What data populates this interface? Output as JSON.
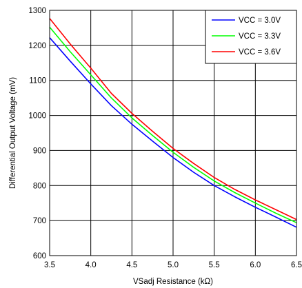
{
  "chart_data": {
    "type": "line",
    "title": "",
    "xlabel": "VSadj Resistance (kΩ)",
    "ylabel": "Differential Output Voltage (mV)",
    "xlim": [
      3.5,
      6.5
    ],
    "ylim": [
      600,
      1300
    ],
    "xticks": [
      "3.5",
      "4.0",
      "4.5",
      "5.0",
      "5.5",
      "6.0",
      "6.5"
    ],
    "yticks": [
      "600",
      "700",
      "800",
      "900",
      "1000",
      "1100",
      "1200",
      "1300"
    ],
    "grid": true,
    "legend_position": "top-right",
    "x": [
      3.5,
      3.75,
      4.0,
      4.25,
      4.5,
      4.75,
      5.0,
      5.25,
      5.5,
      5.75,
      6.0,
      6.25,
      6.5
    ],
    "series": [
      {
        "name": "VCC = 3.0V",
        "color": "#0000ff",
        "values": [
          1222,
          1155,
          1090,
          1028,
          975,
          927,
          880,
          838,
          800,
          768,
          738,
          710,
          681
        ]
      },
      {
        "name": "VCC = 3.3V",
        "color": "#00ff00",
        "values": [
          1252,
          1182,
          1116,
          1050,
          993,
          943,
          895,
          852,
          813,
          780,
          750,
          721,
          694
        ]
      },
      {
        "name": "VCC = 3.6V",
        "color": "#ff0000",
        "values": [
          1277,
          1204,
          1135,
          1063,
          1006,
          955,
          906,
          863,
          823,
          789,
          759,
          731,
          703
        ]
      }
    ]
  }
}
